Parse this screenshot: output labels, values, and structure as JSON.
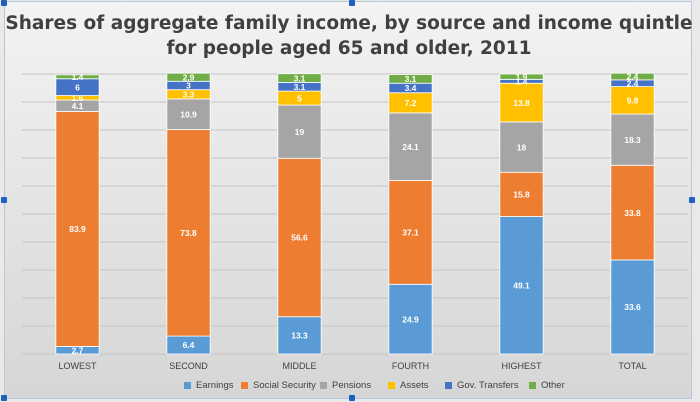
{
  "chart_data": {
    "type": "bar",
    "stacked": true,
    "title": "Shares of aggregate family income, by source and income quintle",
    "subtitle": "for people aged 65 and older, 2011",
    "categories": [
      "LOWEST",
      "SECOND",
      "MIDDLE",
      "FOURTH",
      "HIGHEST",
      "TOTAL"
    ],
    "series": [
      {
        "name": "Earnings",
        "color": "#5b9bd5",
        "values": [
          2.7,
          6.4,
          13.3,
          24.9,
          49.1,
          33.6
        ],
        "labels": [
          "2.7",
          "6.4",
          "13.3",
          "24.9",
          "49.1",
          "33.6"
        ]
      },
      {
        "name": "Social Security",
        "color": "#ed7d31",
        "values": [
          83.9,
          73.8,
          56.6,
          37.1,
          15.8,
          33.8
        ],
        "labels": [
          "83.9",
          "73.8",
          "56.6",
          "37.1",
          "15.8",
          "33.8"
        ]
      },
      {
        "name": "Pensions",
        "color": "#a5a5a5",
        "values": [
          4.1,
          10.9,
          19,
          24.1,
          18,
          18.3
        ],
        "labels": [
          "4.1",
          "10.9",
          "19",
          "24.1",
          "18",
          "18.3"
        ]
      },
      {
        "name": "Assets",
        "color": "#ffc000",
        "values": [
          1.6,
          3.3,
          5,
          7.2,
          13.8,
          9.8
        ],
        "labels": [
          "1.6",
          "3.3",
          "5",
          "7.2",
          "13.8",
          "9.8"
        ]
      },
      {
        "name": "Gov. Transfers",
        "color": "#4472c4",
        "values": [
          6,
          3,
          3.1,
          3.4,
          1.4,
          2.4
        ],
        "labels": [
          "6",
          "3",
          "3.1",
          "3.4",
          "1.4",
          "2.4"
        ]
      },
      {
        "name": "Other",
        "color": "#70ad47",
        "values": [
          1.4,
          2.9,
          3.1,
          3.1,
          1.9,
          2.4
        ],
        "labels": [
          "1.4",
          "2.9",
          "3.1",
          "3.1",
          "1.9",
          "2.4"
        ]
      }
    ],
    "ylim": [
      0,
      100
    ],
    "yaxis_visible": false,
    "grid": true,
    "legend_position": "bottom"
  }
}
